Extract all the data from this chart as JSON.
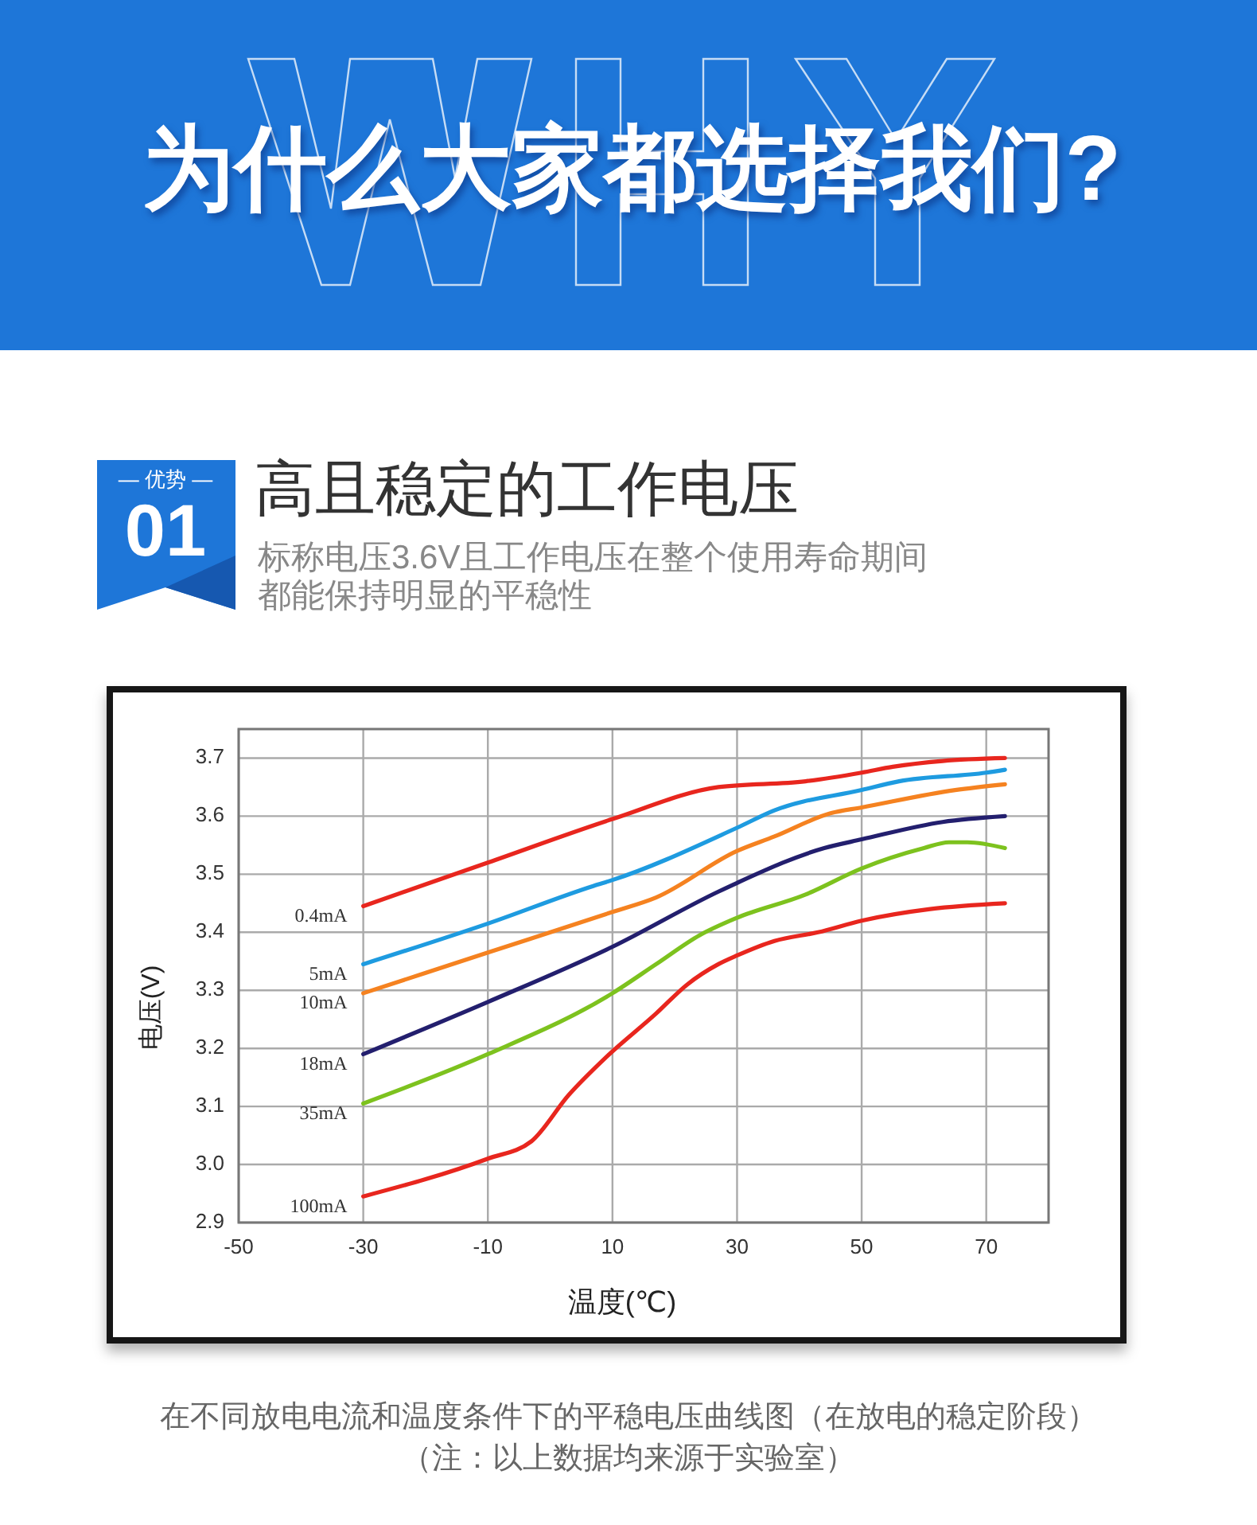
{
  "chart_data": {
    "type": "line",
    "title": "高且稳定的工作电压",
    "subtitle": "标称电压3.6V且工作电压在整个使用寿命期间都能保持明显的平稳性",
    "xlabel": "温度(℃)",
    "ylabel": "电压(V)",
    "annotations": [
      "为什么大家都选择我们?",
      "— 优势 —",
      "01",
      "在不同放电电流和温度条件下的平稳电压曲线图（在放电的稳定阶段）",
      "（注：以上数据均来源于实验室）"
    ],
    "xlim": [
      -50,
      80
    ],
    "xticks": [
      -50,
      -30,
      -10,
      10,
      30,
      50,
      70
    ],
    "ylim": [
      2.9,
      3.75
    ],
    "yticks": [
      2.9,
      {
        "value": 3,
        "label": "3.0"
      },
      3.1,
      3.2,
      3.3,
      3.4,
      3.5,
      3.6,
      3.7
    ],
    "grid": true,
    "series": [
      {
        "name": "0.4mA",
        "color": "#e8261e",
        "x": [
          -30,
          -10,
          10,
          27,
          41,
          50,
          55,
          63,
          73
        ],
        "values": [
          3.445,
          3.52,
          3.595,
          3.65,
          3.66,
          3.675,
          3.685,
          3.695,
          3.7
        ]
      },
      {
        "name": "5mA",
        "color": "#1e9be0",
        "x": [
          -30,
          -10,
          7,
          10,
          30,
          36,
          50,
          56,
          70,
          73
        ],
        "values": [
          3.345,
          3.415,
          3.48,
          3.49,
          3.58,
          3.61,
          3.645,
          3.66,
          3.675,
          3.68
        ]
      },
      {
        "name": "10mA",
        "color": "#f58220",
        "x": [
          -30,
          -10,
          10,
          17,
          30,
          36,
          45,
          50,
          65,
          73
        ],
        "values": [
          3.295,
          3.365,
          3.435,
          3.46,
          3.54,
          3.565,
          3.605,
          3.615,
          3.645,
          3.655
        ]
      },
      {
        "name": "18mA",
        "color": "#231f6e",
        "x": [
          -30,
          -10,
          10,
          27,
          30,
          44,
          50,
          63,
          73
        ],
        "values": [
          3.19,
          3.28,
          3.375,
          3.47,
          3.485,
          3.545,
          3.56,
          3.59,
          3.6
        ]
      },
      {
        "name": "35mA",
        "color": "#7dc21e",
        "x": [
          -30,
          -10,
          10,
          17,
          24,
          30,
          41,
          50,
          60,
          64,
          67,
          73
        ],
        "values": [
          3.105,
          3.19,
          3.295,
          3.345,
          3.395,
          3.425,
          3.465,
          3.51,
          3.545,
          3.555,
          3.555,
          3.545
        ]
      },
      {
        "name": "100mA",
        "color": "#e8261e",
        "x": [
          -30,
          -10,
          -3,
          3,
          9,
          17,
          22,
          27,
          30,
          36,
          43,
          50,
          61,
          73
        ],
        "values": [
          2.945,
          3.01,
          3.04,
          3.12,
          3.185,
          3.26,
          3.31,
          3.345,
          3.36,
          3.385,
          3.4,
          3.42,
          3.44,
          3.45
        ]
      }
    ]
  }
}
